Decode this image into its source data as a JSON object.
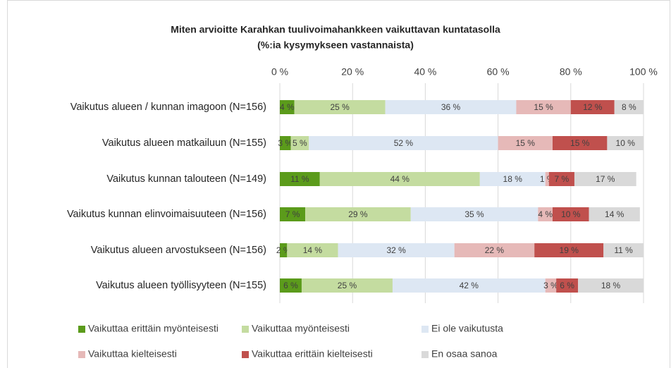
{
  "chart_data": {
    "type": "stacked-bar-horizontal",
    "title": "Miten arvioitte Karahkan tuulivoimahankkeen vaikuttavan kuntatasolla",
    "subtitle": "(%:ia kysymykseen vastannaista)",
    "categories": [
      "Vaikutus alueen / kunnan imagoon (N=156)",
      "Vaikutus alueen matkailuun (N=155)",
      "Vaikutus kunnan talouteen (N=149)",
      "Vaikutus kunnan elinvoimaisuuteen (N=156)",
      "Vaikutus alueen arvostukseen (N=156)",
      "Vaikutus alueen työllisyyteen (N=155)"
    ],
    "series": [
      {
        "name": "Vaikuttaa erittäin myönteisesti",
        "color": "#5b9b1b",
        "values": [
          4,
          3,
          11,
          7,
          2,
          6
        ],
        "value_labels": [
          "4 %",
          "3 %",
          "11 %",
          "7 %",
          "2 %",
          "6 %"
        ]
      },
      {
        "name": "Vaikuttaa myönteisesti",
        "color": "#c4dca0",
        "values": [
          25,
          5,
          44,
          29,
          14,
          25
        ],
        "value_labels": [
          "25 %",
          "5 %",
          "44 %",
          "29 %",
          "14 %",
          "25 %"
        ]
      },
      {
        "name": "Ei ole vaikutusta",
        "color": "#dde7f3",
        "values": [
          36,
          52,
          18,
          35,
          32,
          42
        ],
        "value_labels": [
          "36 %",
          "52 %",
          "18 %",
          "35 %",
          "32 %",
          "42 %"
        ]
      },
      {
        "name": "Vaikuttaa kielteisesti",
        "color": "#e6b9b8",
        "values": [
          15,
          15,
          1,
          4,
          22,
          3
        ],
        "value_labels": [
          "15 %",
          "15 %",
          "1 %",
          "4 %",
          "22 %",
          "3 %"
        ]
      },
      {
        "name": "Vaikuttaa erittäin kielteisesti",
        "color": "#c0504d",
        "values": [
          12,
          15,
          7,
          10,
          19,
          6
        ],
        "value_labels": [
          "12 %",
          "15 %",
          "7 %",
          "10 %",
          "19 %",
          "6 %"
        ]
      },
      {
        "name": "En osaa sanoa",
        "color": "#d9d9d9",
        "values": [
          8,
          10,
          17,
          14,
          11,
          18
        ],
        "value_labels": [
          "8 %",
          "10 %",
          "17 %",
          "14 %",
          "11 %",
          "18 %"
        ]
      }
    ],
    "xlim": [
      0,
      100
    ],
    "xticks": [
      {
        "value": 0,
        "label": "0 %"
      },
      {
        "value": 20,
        "label": "20 %"
      },
      {
        "value": 40,
        "label": "40 %"
      },
      {
        "value": 60,
        "label": "60 %"
      },
      {
        "value": 80,
        "label": "80 %"
      },
      {
        "value": 100,
        "label": "100 %"
      }
    ],
    "grid": true,
    "legend": "bottom"
  }
}
